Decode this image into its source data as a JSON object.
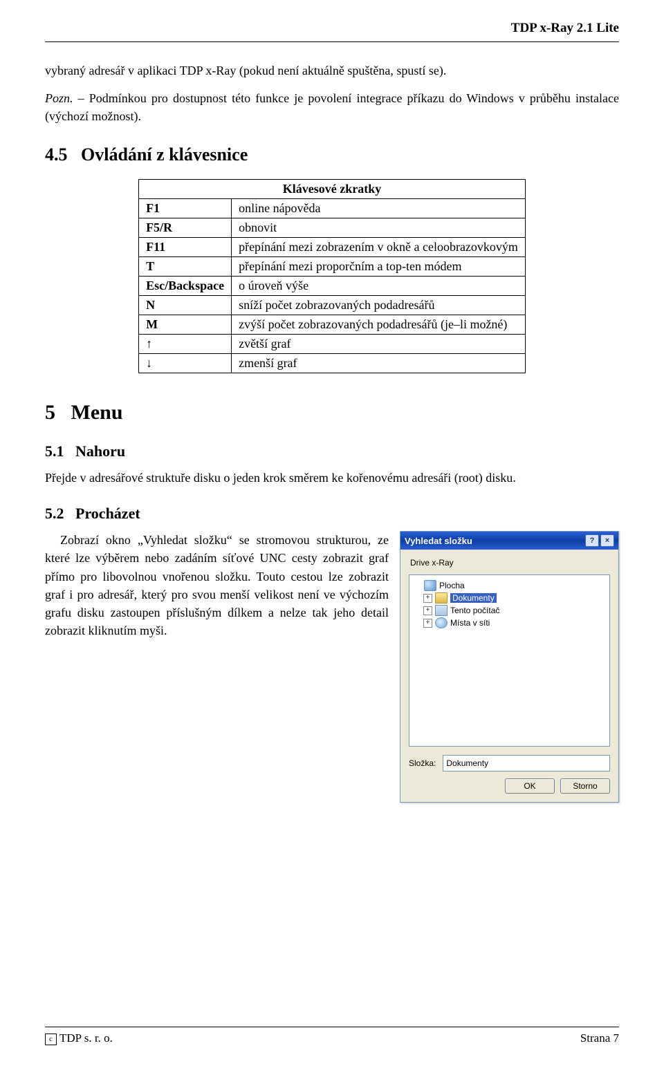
{
  "header": {
    "product": "TDP x-Ray 2.1 Lite"
  },
  "intro_para": "vybraný adresář v aplikaci TDP x-Ray (pokud není aktuálně spuštěna, spustí se).",
  "note": {
    "label": "Pozn.",
    "text": " – Podmínkou pro dostupnost této funkce je povolení integrace příkazu do Windows v průběhu instalace (výchozí možnost)."
  },
  "sec45": {
    "number": "4.5",
    "title": "Ovládání z klávesnice"
  },
  "shortcuts": {
    "caption": "Klávesové zkratky",
    "rows": [
      {
        "key": "F1",
        "desc": "online nápověda"
      },
      {
        "key": "F5/R",
        "desc": "obnovit"
      },
      {
        "key": "F11",
        "desc": "přepínání mezi zobrazením v okně a celoobrazovkovým"
      },
      {
        "key": "T",
        "desc": "přepínání mezi proporčním a top-ten módem"
      },
      {
        "key": "Esc/Backspace",
        "desc": "o úroveň výše"
      },
      {
        "key": "N",
        "desc": "sníží počet zobrazovaných podadresářů"
      },
      {
        "key": "M",
        "desc": "zvýší počet zobrazovaných podadresářů (je–li možné)"
      },
      {
        "key": "↑",
        "desc": "zvětší graf"
      },
      {
        "key": "↓",
        "desc": "zmenší graf"
      }
    ]
  },
  "chapter5": {
    "number": "5",
    "title": "Menu"
  },
  "sec51": {
    "number": "5.1",
    "title": "Nahoru",
    "text": "Přejde v adresářové struktuře disku o jeden krok směrem ke kořenovému adresáři (root) disku."
  },
  "sec52": {
    "number": "5.2",
    "title": "Procházet",
    "text": "Zobrazí okno „Vyhledat složku“ se stromovou strukturou, ze které lze výběrem nebo zadáním síťové UNC cesty zobrazit graf přímo pro libovolnou vnořenou složku. Touto cestou lze zobrazit graf i pro adresář, který pro svou menší velikost není ve výchozím grafu disku zastoupen příslušným dílkem a nelze tak jeho detail zobrazit kliknutím myši."
  },
  "dialog": {
    "title": "Vyhledat složku",
    "label": "Drive x-Ray",
    "tree": {
      "plocha": "Plocha",
      "dokumenty": "Dokumenty",
      "tento_pocitac": "Tento počítač",
      "mista_v_siti": "Místa v síti"
    },
    "folder_label": "Složka:",
    "folder_value": "Dokumenty",
    "ok": "OK",
    "storno": "Storno"
  },
  "footer": {
    "left": "TDP s. r. o.",
    "right": "Strana 7",
    "copyright_char": "c"
  },
  "colors": {
    "text": "#000000",
    "background": "#ffffff",
    "dialog_bg": "#ece9d8",
    "titlebar_from": "#2a5fd8",
    "titlebar_to": "#0f3ea0",
    "selection_bg": "#3860c0"
  }
}
